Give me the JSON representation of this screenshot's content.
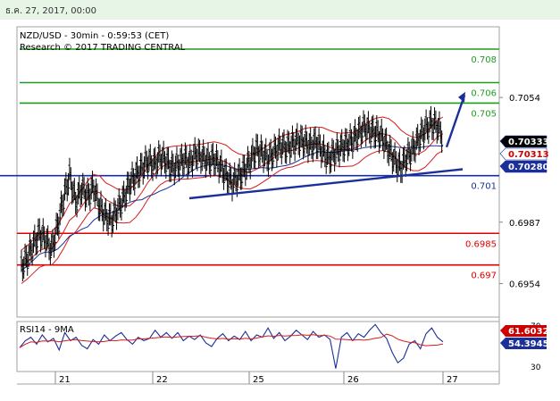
{
  "header": {
    "timestamp": "ธ.ค. 27, 2017, 00:00"
  },
  "chart_data": {
    "type": "candlestick",
    "title": "NZD/USD - 30min - 0:59:53 (CET)",
    "subtitle": "Research © 2017 TRADING CENTRAL",
    "x_ticks": [
      "21",
      "22",
      "25",
      "26",
      "27"
    ],
    "y_ticks": [
      "0.7054",
      "0.6987",
      "0.6954"
    ],
    "ylim": [
      0.6936,
      0.7092
    ],
    "price_badges": [
      {
        "label": "0.70333",
        "value": 0.70333,
        "bg": "#000000",
        "fg": "#ffffff"
      },
      {
        "label": "0.70313",
        "value": 0.70313,
        "bg": "#ffffff",
        "fg": "#cc0000"
      },
      {
        "label": "0.70280",
        "value": 0.7028,
        "bg": "#1a2f9a",
        "fg": "#ffffff"
      }
    ],
    "levels": [
      {
        "label": "0.708",
        "value": 0.708,
        "color": "#1e9e1e",
        "label_color": "#1e9e1e"
      },
      {
        "label": "0.706",
        "value": 0.7062,
        "color": "#1e9e1e",
        "label_color": "#1e9e1e"
      },
      {
        "label": "0.705",
        "value": 0.7051,
        "color": "#1e9e1e",
        "label_color": "#1e9e1e"
      },
      {
        "label": "0.701",
        "value": 0.7012,
        "color": "#1a2f9a",
        "label_color": "#1a2f9a"
      },
      {
        "label": "0.6985",
        "value": 0.6981,
        "color": "#e00000",
        "label_color": "#e00000"
      },
      {
        "label": "0.697",
        "value": 0.6964,
        "color": "#e00000",
        "label_color": "#e00000"
      }
    ],
    "price_path": [
      0.6963,
      0.6968,
      0.6975,
      0.6981,
      0.6978,
      0.6972,
      0.6985,
      0.7,
      0.7012,
      0.6998,
      0.7005,
      0.7001,
      0.7006,
      0.6995,
      0.699,
      0.6988,
      0.6994,
      0.7,
      0.7008,
      0.7012,
      0.7016,
      0.702,
      0.7018,
      0.7022,
      0.702,
      0.7016,
      0.7018,
      0.7021,
      0.7019,
      0.7024,
      0.7022,
      0.702,
      0.7021,
      0.7017,
      0.7012,
      0.7008,
      0.7011,
      0.7015,
      0.702,
      0.7026,
      0.7024,
      0.7021,
      0.7025,
      0.7028,
      0.7027,
      0.7029,
      0.7031,
      0.703,
      0.7028,
      0.703,
      0.7025,
      0.7021,
      0.7024,
      0.7027,
      0.7029,
      0.7031,
      0.7035,
      0.7038,
      0.7036,
      0.7035,
      0.7032,
      0.7026,
      0.702,
      0.7016,
      0.7022,
      0.7026,
      0.7032,
      0.7037,
      0.704,
      0.7039,
      0.7033
    ],
    "trendline": {
      "from": 0.7008,
      "to": 0.7014
    },
    "arrow": {
      "from": 0.7035,
      "to": 0.7058
    },
    "rsi": {
      "label": "RSI14 - 9MA",
      "ylim": [
        30,
        70
      ],
      "ticks": [
        "70",
        "50",
        "30"
      ],
      "badges": [
        {
          "label": "61.6032",
          "bg": "#cc0000",
          "fg": "#ffffff"
        },
        {
          "label": "54.3945",
          "bg": "#1a2f9a",
          "fg": "#ffffff"
        }
      ],
      "values": [
        49,
        55,
        58,
        52,
        60,
        54,
        57,
        47,
        62,
        55,
        58,
        51,
        48,
        56,
        52,
        60,
        55,
        59,
        62,
        56,
        52,
        58,
        55,
        57,
        64,
        58,
        62,
        57,
        62,
        55,
        59,
        56,
        60,
        53,
        50,
        57,
        61,
        55,
        59,
        56,
        63,
        55,
        60,
        58,
        66,
        57,
        62,
        55,
        59,
        64,
        60,
        56,
        63,
        58,
        60,
        56,
        31,
        58,
        62,
        55,
        61,
        58,
        64,
        69,
        62,
        57,
        45,
        36,
        40,
        52,
        55,
        48,
        61,
        66,
        58,
        54
      ]
    }
  }
}
